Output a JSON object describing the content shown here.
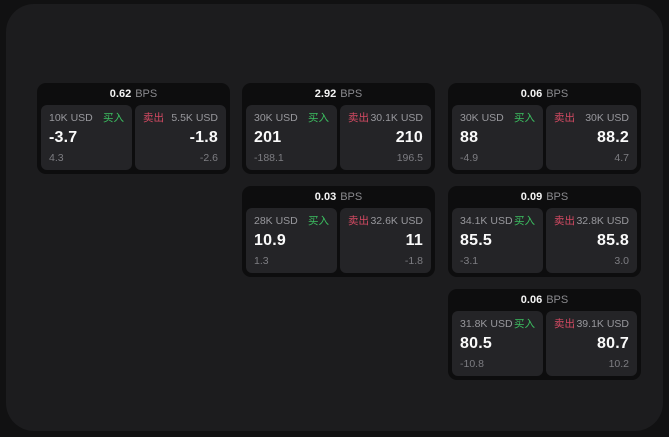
{
  "labels": {
    "bps_unit": "BPS",
    "buy": "买入",
    "sell": "卖出"
  },
  "colors": {
    "background": "#111112",
    "panel": "#1c1c1e",
    "card": "#0d0d0e",
    "tile": "#242427",
    "buy_green": "#3cc061",
    "sell_red": "#d44a63",
    "text_primary": "#fafafa",
    "text_secondary": "#98989d"
  },
  "cards": [
    {
      "bps": "0.62",
      "buy": {
        "amount": "10K USD",
        "price": "-3.7",
        "delta": "4.3"
      },
      "sell": {
        "amount": "5.5K USD",
        "price": "-1.8",
        "delta": "-2.6"
      }
    },
    {
      "bps": "2.92",
      "buy": {
        "amount": "30K USD",
        "price": "201",
        "delta": "-188.1"
      },
      "sell": {
        "amount": "30.1K USD",
        "price": "210",
        "delta": "196.5"
      }
    },
    {
      "bps": "0.06",
      "buy": {
        "amount": "30K USD",
        "price": "88",
        "delta": "-4.9"
      },
      "sell": {
        "amount": "30K USD",
        "price": "88.2",
        "delta": "4.7"
      }
    },
    {
      "bps": "0.03",
      "buy": {
        "amount": "28K USD",
        "price": "10.9",
        "delta": "1.3"
      },
      "sell": {
        "amount": "32.6K USD",
        "price": "11",
        "delta": "-1.8"
      }
    },
    {
      "bps": "0.09",
      "buy": {
        "amount": "34.1K USD",
        "price": "85.5",
        "delta": "-3.1"
      },
      "sell": {
        "amount": "32.8K USD",
        "price": "85.8",
        "delta": "3.0"
      }
    },
    {
      "bps": "0.06",
      "buy": {
        "amount": "31.8K USD",
        "price": "80.5",
        "delta": "-10.8"
      },
      "sell": {
        "amount": "39.1K USD",
        "price": "80.7",
        "delta": "10.2"
      }
    }
  ]
}
